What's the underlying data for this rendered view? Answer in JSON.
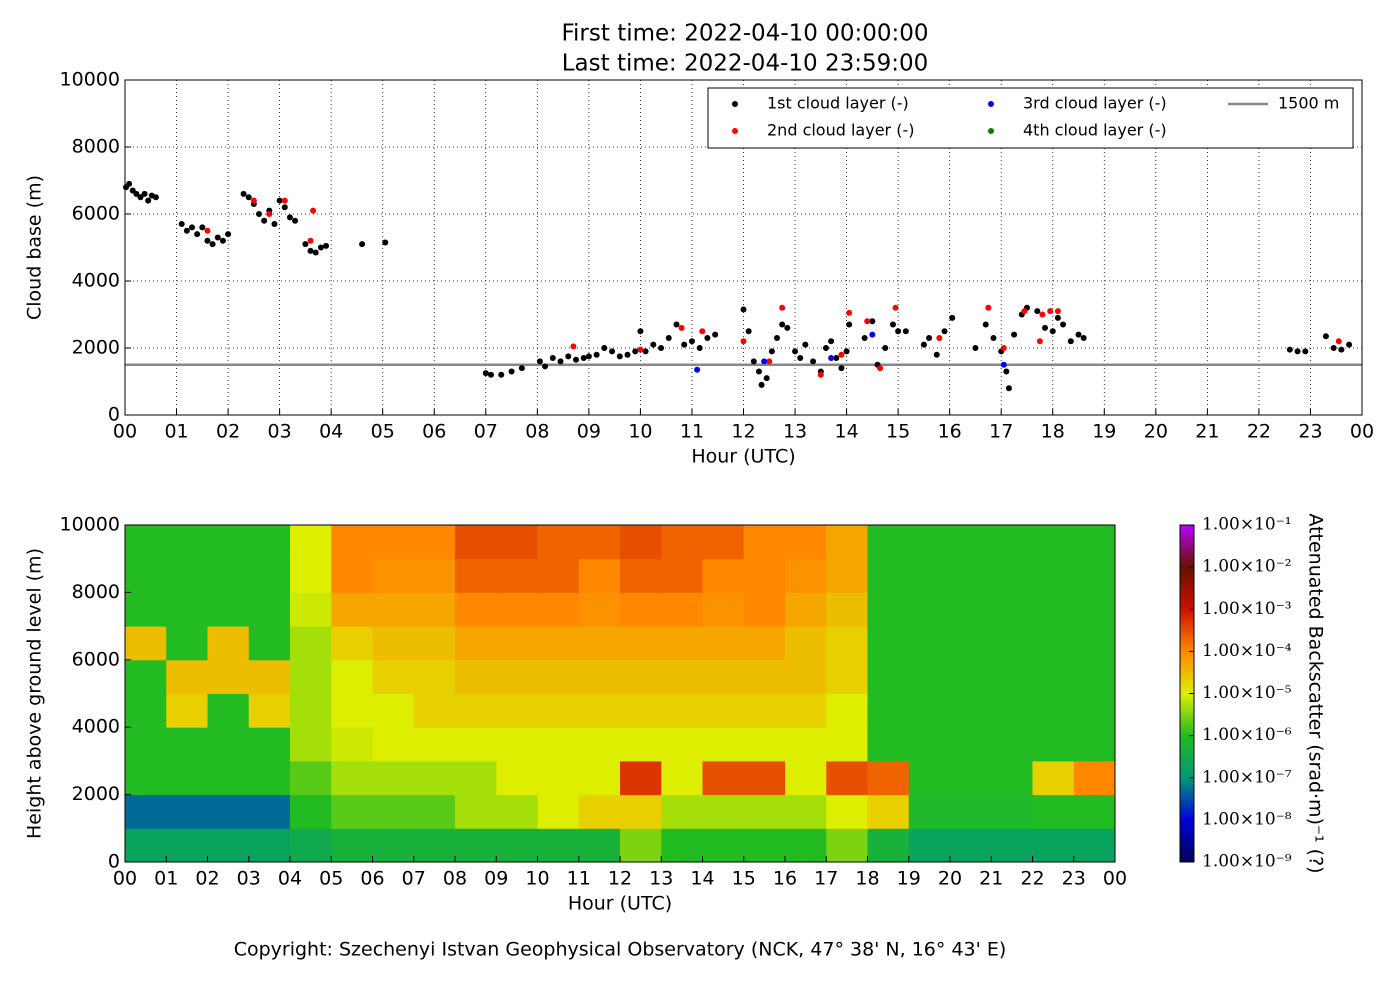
{
  "chart_data": [
    {
      "type": "scatter",
      "title": "First time: 2022-04-10 00:00:00",
      "subtitle": "Last time: 2022-04-10 23:59:00",
      "x_label": "Hour (UTC)",
      "y_label": "Cloud base (m)",
      "grid": true,
      "legend": "upper right",
      "xlim": [
        0,
        24
      ],
      "ylim": [
        0,
        10000
      ],
      "xticks": [
        {
          "value": 0,
          "label": "00"
        },
        {
          "value": 1,
          "label": "01"
        },
        {
          "value": 2,
          "label": "02"
        },
        {
          "value": 3,
          "label": "03"
        },
        {
          "value": 4,
          "label": "04"
        },
        {
          "value": 5,
          "label": "05"
        },
        {
          "value": 6,
          "label": "06"
        },
        {
          "value": 7,
          "label": "07"
        },
        {
          "value": 8,
          "label": "08"
        },
        {
          "value": 9,
          "label": "09"
        },
        {
          "value": 10,
          "label": "10"
        },
        {
          "value": 11,
          "label": "11"
        },
        {
          "value": 12,
          "label": "12"
        },
        {
          "value": 13,
          "label": "13"
        },
        {
          "value": 14,
          "label": "14"
        },
        {
          "value": 15,
          "label": "15"
        },
        {
          "value": 16,
          "label": "16"
        },
        {
          "value": 17,
          "label": "17"
        },
        {
          "value": 18,
          "label": "18"
        },
        {
          "value": 19,
          "label": "19"
        },
        {
          "value": 20,
          "label": "20"
        },
        {
          "value": 21,
          "label": "21"
        },
        {
          "value": 22,
          "label": "22"
        },
        {
          "value": 23,
          "label": "23"
        },
        {
          "value": 24,
          "label": "00"
        }
      ],
      "yticks": [
        0,
        2000,
        4000,
        6000,
        8000,
        10000
      ],
      "series": [
        {
          "name": "1st cloud layer (-)",
          "color": "#000000",
          "x": [
            0.02,
            0.08,
            0.15,
            0.22,
            0.3,
            0.38,
            0.45,
            0.52,
            0.6,
            1.1,
            1.2,
            1.3,
            1.4,
            1.5,
            1.6,
            1.7,
            1.8,
            1.9,
            2.0,
            2.3,
            2.4,
            2.5,
            2.6,
            2.7,
            2.8,
            2.9,
            3.0,
            3.1,
            3.2,
            3.3,
            3.5,
            3.6,
            3.7,
            3.8,
            3.9,
            4.6,
            5.05,
            7.0,
            7.1,
            7.3,
            7.5,
            7.7,
            8.05,
            8.15,
            8.3,
            8.45,
            8.6,
            8.75,
            8.9,
            9.0,
            9.15,
            9.3,
            9.45,
            9.6,
            9.75,
            9.9,
            10.0,
            10.1,
            10.25,
            10.4,
            10.55,
            10.7,
            10.85,
            11.0,
            11.15,
            11.3,
            11.45,
            12.0,
            12.1,
            12.2,
            12.3,
            12.35,
            12.45,
            12.55,
            12.65,
            12.75,
            12.85,
            13.0,
            13.1,
            13.2,
            13.35,
            13.5,
            13.6,
            13.7,
            13.8,
            13.9,
            14.0,
            14.05,
            14.35,
            14.5,
            14.6,
            14.75,
            14.9,
            15.0,
            15.15,
            15.5,
            15.6,
            15.75,
            15.9,
            16.05,
            16.5,
            16.7,
            16.85,
            17.0,
            17.1,
            17.15,
            17.25,
            17.4,
            17.5,
            17.7,
            17.85,
            18.0,
            18.1,
            18.2,
            18.35,
            18.5,
            18.6,
            22.6,
            22.75,
            22.9,
            23.3,
            23.45,
            23.6,
            23.75
          ],
          "values": [
            6800,
            6900,
            6700,
            6600,
            6500,
            6600,
            6400,
            6550,
            6500,
            5700,
            5500,
            5600,
            5400,
            5600,
            5200,
            5100,
            5300,
            5200,
            5400,
            6600,
            6500,
            6300,
            6000,
            5800,
            6100,
            5700,
            6400,
            6200,
            5900,
            5800,
            5100,
            4900,
            4850,
            5000,
            5050,
            5100,
            5150,
            1250,
            1200,
            1200,
            1300,
            1400,
            1600,
            1450,
            1700,
            1600,
            1750,
            1650,
            1700,
            1750,
            1800,
            2000,
            1900,
            1750,
            1800,
            1900,
            2500,
            1900,
            2100,
            2000,
            2300,
            2700,
            2100,
            2200,
            2000,
            2300,
            2400,
            3150,
            2500,
            1600,
            1300,
            900,
            1100,
            1900,
            2300,
            2700,
            2600,
            1900,
            1700,
            2100,
            1600,
            1300,
            2000,
            2200,
            1700,
            1400,
            1900,
            2700,
            2300,
            2800,
            1500,
            2000,
            2700,
            2500,
            2500,
            2100,
            2300,
            1800,
            2500,
            2900,
            2000,
            2700,
            2300,
            1900,
            1300,
            800,
            2400,
            3000,
            3200,
            3100,
            2600,
            2500,
            2900,
            2700,
            2200,
            2400,
            2300,
            1950,
            1900,
            1900,
            2350,
            2000,
            1950,
            2100
          ]
        },
        {
          "name": "2nd cloud layer (-)",
          "color": "#ff0000",
          "x": [
            1.6,
            2.5,
            2.8,
            3.1,
            3.6,
            3.65,
            8.7,
            10.0,
            10.8,
            11.2,
            12.0,
            12.5,
            12.75,
            13.5,
            13.9,
            14.05,
            14.4,
            14.65,
            14.95,
            15.8,
            16.75,
            17.05,
            17.45,
            17.75,
            17.8,
            17.95,
            18.1,
            23.55
          ],
          "values": [
            5500,
            6400,
            6000,
            6400,
            5200,
            6100,
            2050,
            1950,
            2600,
            2500,
            2200,
            1600,
            3200,
            1200,
            1800,
            3050,
            2800,
            1400,
            3200,
            2300,
            3200,
            2000,
            3100,
            2200,
            3000,
            3100,
            3100,
            2200
          ]
        },
        {
          "name": "3rd cloud layer (-)",
          "color": "#0000ff",
          "x": [
            11.1,
            12.4,
            13.7,
            14.5,
            17.05
          ],
          "values": [
            1350,
            1600,
            1700,
            2400,
            1500
          ]
        },
        {
          "name": "4th cloud layer (-)",
          "color": "#008000",
          "x": [],
          "values": []
        }
      ],
      "reference_line": {
        "name": "1500 m",
        "value": 1500,
        "color": "#888888"
      }
    },
    {
      "type": "heatmap",
      "x_label": "Hour (UTC)",
      "y_label": "Height above ground level (m)",
      "colorbar_label": "Attenuated Backscatter (srad·m)⁻¹ (?)",
      "log_color": true,
      "xlim": [
        0,
        24
      ],
      "ylim": [
        0,
        10000
      ],
      "xticks": [
        {
          "value": 0,
          "label": "00"
        },
        {
          "value": 1,
          "label": "01"
        },
        {
          "value": 2,
          "label": "02"
        },
        {
          "value": 3,
          "label": "03"
        },
        {
          "value": 4,
          "label": "04"
        },
        {
          "value": 5,
          "label": "05"
        },
        {
          "value": 6,
          "label": "06"
        },
        {
          "value": 7,
          "label": "07"
        },
        {
          "value": 8,
          "label": "08"
        },
        {
          "value": 9,
          "label": "09"
        },
        {
          "value": 10,
          "label": "10"
        },
        {
          "value": 11,
          "label": "11"
        },
        {
          "value": 12,
          "label": "12"
        },
        {
          "value": 13,
          "label": "13"
        },
        {
          "value": 14,
          "label": "14"
        },
        {
          "value": 15,
          "label": "15"
        },
        {
          "value": 16,
          "label": "16"
        },
        {
          "value": 17,
          "label": "17"
        },
        {
          "value": 18,
          "label": "18"
        },
        {
          "value": 19,
          "label": "19"
        },
        {
          "value": 20,
          "label": "20"
        },
        {
          "value": 21,
          "label": "21"
        },
        {
          "value": 22,
          "label": "22"
        },
        {
          "value": 23,
          "label": "23"
        },
        {
          "value": 24,
          "label": "00"
        }
      ],
      "yticks": [
        0,
        2000,
        4000,
        6000,
        8000,
        10000
      ],
      "clim": [
        1e-09,
        0.1
      ],
      "cticks": [
        {
          "value": 1e-09,
          "label": "1.00×10⁻⁹"
        },
        {
          "value": 1e-08,
          "label": "1.00×10⁻⁸"
        },
        {
          "value": 1e-07,
          "label": "1.00×10⁻⁷"
        },
        {
          "value": 1e-06,
          "label": "1.00×10⁻⁶"
        },
        {
          "value": 1e-05,
          "label": "1.00×10⁻⁵"
        },
        {
          "value": 0.0001,
          "label": "1.00×10⁻⁴"
        },
        {
          "value": 0.001,
          "label": "1.00×10⁻³"
        },
        {
          "value": 0.01,
          "label": "1.00×10⁻²"
        },
        {
          "value": 0.1,
          "label": "1.00×10⁻¹"
        }
      ],
      "colormap": [
        "#000055",
        "#0000dd",
        "#009977",
        "#22bb22",
        "#ddee00",
        "#ff8800",
        "#cc1100",
        "#661100",
        "#bb00ff"
      ],
      "values": [
        [
          2e-07,
          2e-07,
          2e-07,
          2e-07,
          3e-07,
          5e-07,
          5e-07,
          5e-07,
          5e-07,
          5e-07,
          5e-07,
          5e-07,
          3e-06,
          1e-06,
          1e-06,
          1e-06,
          1e-06,
          3e-06,
          5e-07,
          2e-07,
          2e-07,
          2e-07,
          2e-07,
          2e-07
        ],
        [
          5e-08,
          5e-08,
          5e-08,
          5e-08,
          1e-06,
          2e-06,
          2e-06,
          2e-06,
          5e-06,
          5e-06,
          1e-05,
          2e-05,
          2e-05,
          5e-06,
          5e-06,
          5e-06,
          5e-06,
          1e-05,
          2e-05,
          8e-07,
          8e-07,
          8e-07,
          1e-06,
          1e-06
        ],
        [
          1e-06,
          1e-06,
          1e-06,
          1e-06,
          2e-06,
          5e-06,
          5e-06,
          5e-06,
          5e-06,
          1e-05,
          1e-05,
          1e-05,
          0.0005,
          1e-05,
          0.0003,
          0.0003,
          1e-05,
          0.0003,
          0.0002,
          1e-06,
          1e-06,
          1e-06,
          2e-05,
          0.0001
        ],
        [
          1e-06,
          1e-06,
          1e-06,
          1e-06,
          5e-06,
          8e-06,
          1e-05,
          1e-05,
          1e-05,
          1e-05,
          1e-05,
          1e-05,
          1e-05,
          1e-05,
          1e-05,
          1e-05,
          1e-05,
          1e-05,
          1e-06,
          1e-06,
          1e-06,
          1e-06,
          1e-06,
          1e-06
        ],
        [
          1e-06,
          2e-05,
          1e-06,
          2e-05,
          5e-06,
          1e-05,
          1e-05,
          2e-05,
          2e-05,
          2e-05,
          2e-05,
          2e-05,
          2e-05,
          2e-05,
          2e-05,
          2e-05,
          2e-05,
          1e-05,
          1e-06,
          1e-06,
          1e-06,
          1e-06,
          1e-06,
          1e-06
        ],
        [
          1e-06,
          3e-05,
          3e-05,
          3e-05,
          5e-06,
          1e-05,
          2e-05,
          2e-05,
          3e-05,
          3e-05,
          3e-05,
          3e-05,
          3e-05,
          3e-05,
          3e-05,
          3e-05,
          3e-05,
          2e-05,
          1e-06,
          1e-06,
          1e-06,
          1e-06,
          1e-06,
          1e-06
        ],
        [
          3e-05,
          1e-06,
          3e-05,
          1e-06,
          5e-06,
          2e-05,
          3e-05,
          3e-05,
          5e-05,
          5e-05,
          5e-05,
          5e-05,
          5e-05,
          5e-05,
          5e-05,
          5e-05,
          3e-05,
          2e-05,
          1e-06,
          1e-06,
          1e-06,
          1e-06,
          1e-06,
          1e-06
        ],
        [
          1e-06,
          1e-06,
          1e-06,
          1e-06,
          8e-06,
          5e-05,
          5e-05,
          5e-05,
          0.0001,
          0.0001,
          0.0001,
          8e-05,
          0.0001,
          0.0001,
          8e-05,
          0.0001,
          5e-05,
          3e-05,
          1e-06,
          1e-06,
          1e-06,
          1e-06,
          1e-06,
          1e-06
        ],
        [
          1e-06,
          1e-06,
          1e-06,
          1e-06,
          1e-05,
          0.0001,
          8e-05,
          8e-05,
          0.0002,
          0.0002,
          0.0002,
          0.0001,
          0.0002,
          0.0002,
          0.0001,
          0.0001,
          8e-05,
          5e-05,
          1e-06,
          1e-06,
          1e-06,
          1e-06,
          1e-06,
          1e-06
        ],
        [
          1e-06,
          1e-06,
          1e-06,
          1e-06,
          1e-05,
          0.0001,
          0.0001,
          0.0001,
          0.0003,
          0.0003,
          0.0002,
          0.0002,
          0.0003,
          0.0002,
          0.0002,
          0.0001,
          0.0001,
          5e-05,
          1e-06,
          1e-06,
          1e-06,
          1e-06,
          1e-06,
          1e-06
        ]
      ]
    }
  ],
  "footer": "Copyright: Szechenyi Istvan Geophysical Observatory (NCK, 47° 38' N, 16° 43' E)"
}
